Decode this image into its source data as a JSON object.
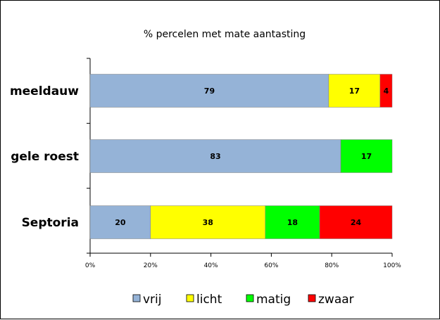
{
  "chart_data": {
    "type": "bar",
    "orientation": "horizontal",
    "stacked": true,
    "title": "% percelen met mate aantasting",
    "categories": [
      "meeldauw",
      "gele roest",
      "Septoria"
    ],
    "series": [
      {
        "name": "vrij",
        "color": "#95b3d7",
        "values": [
          79,
          83,
          20
        ]
      },
      {
        "name": "licht",
        "color": "#ffff00",
        "values": [
          17,
          0,
          38
        ]
      },
      {
        "name": "matig",
        "color": "#00ff00",
        "values": [
          0,
          17,
          18
        ]
      },
      {
        "name": "zwaar",
        "color": "#ff0000",
        "values": [
          4,
          0,
          24
        ]
      }
    ],
    "xlim": [
      0,
      100
    ],
    "xticks": [
      "0%",
      "20%",
      "40%",
      "60%",
      "80%",
      "100%"
    ],
    "grid": false,
    "legend": "bottom"
  }
}
